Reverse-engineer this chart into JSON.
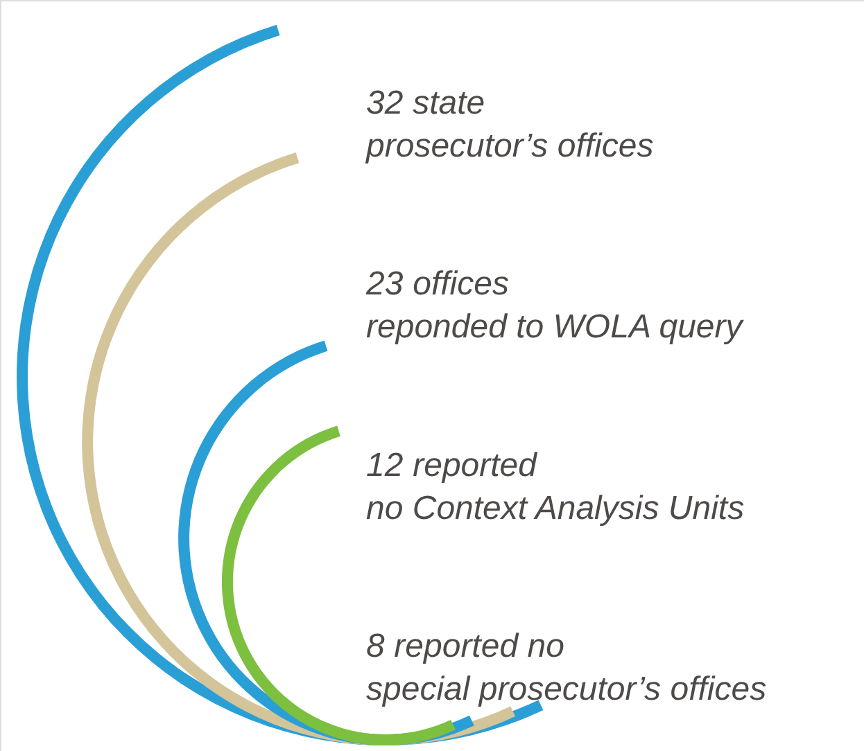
{
  "chart_data": {
    "type": "other",
    "categories": [
      "state\nprosecutor’s offices",
      "offices\n reponded to WOLA query",
      "reported\n no Context Analysis Units",
      "reported no\nspecial prosecutor’s offices"
    ],
    "values": [
      32,
      23,
      12,
      8
    ],
    "data_labels": true,
    "colors": [
      "#2a9fd6",
      "#d4c49a",
      "#2a9fd6",
      "#7dbf3f"
    ]
  }
}
